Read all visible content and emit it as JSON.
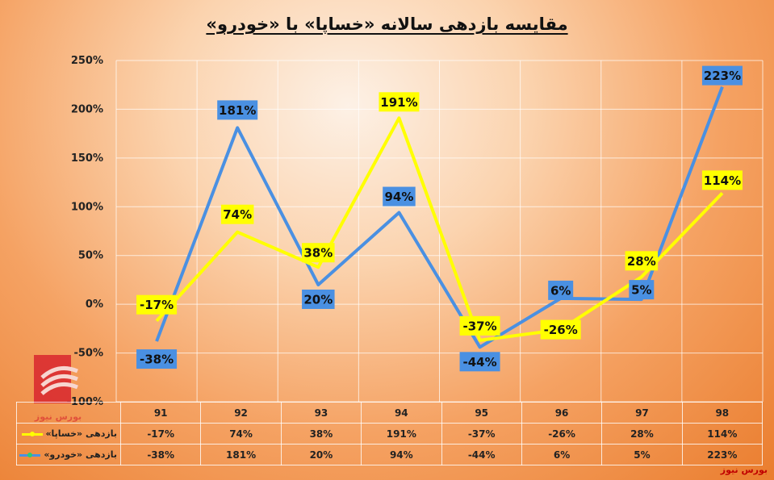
{
  "chart_data": {
    "type": "line",
    "title": "مقایسه بازدهی سالانه «خساپا» با «خودرو»",
    "categories": [
      "91",
      "92",
      "93",
      "94",
      "95",
      "96",
      "97",
      "98"
    ],
    "ylim": [
      -100,
      250
    ],
    "yticks": [
      "-100%",
      "-50%",
      "0%",
      "50%",
      "100%",
      "150%",
      "200%",
      "250%"
    ],
    "grid": true,
    "legend": "table-bottom",
    "series": [
      {
        "name": "بازدهی «خساپا»",
        "color": "#ffff00",
        "values": [
          -17,
          74,
          38,
          191,
          -37,
          -26,
          28,
          114
        ],
        "labels": [
          "-17%",
          "74%",
          "38%",
          "191%",
          "-37%",
          "-26%",
          "28%",
          "114%"
        ]
      },
      {
        "name": "بازدهی «خودرو»",
        "color": "#4a90e2",
        "values": [
          -38,
          181,
          20,
          94,
          -44,
          6,
          5,
          223
        ],
        "labels": [
          "-38%",
          "181%",
          "20%",
          "94%",
          "-44%",
          "6%",
          "5%",
          "223%"
        ]
      }
    ]
  },
  "brand": {
    "logo_text": "بورس نیوز",
    "footer_text": "بورس نیوز"
  },
  "colors": {
    "khesapa": "#ffff00",
    "khodro": "#4a90e2",
    "khodro_marker": "#2ecc71",
    "label_text": "#111111",
    "brand": "#c00000"
  }
}
